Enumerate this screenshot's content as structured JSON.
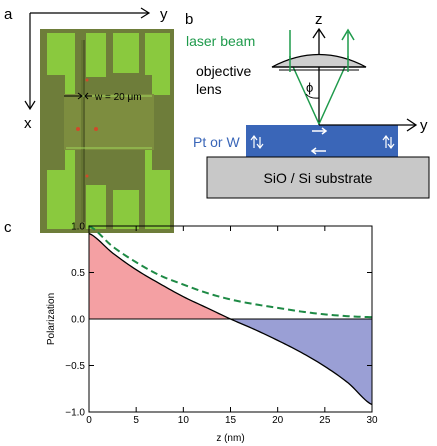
{
  "panels": {
    "a": {
      "label": "a",
      "axis_x": "x",
      "axis_y": "y",
      "width_annotation": "w = 20 μm"
    },
    "b": {
      "label": "b",
      "axis_z": "z",
      "axis_y": "y",
      "laser_label": "laser beam",
      "objective_line1": "objective",
      "objective_line2": "lens",
      "angle_label": "ϕ",
      "film_label": "Pt or W",
      "substrate_label": "SiO / Si substrate",
      "colors": {
        "laser": "#1e9a4b",
        "film": "#3a66b8",
        "film_text": "#3a66b8",
        "substrate": "#c8c8c8"
      }
    },
    "c": {
      "label": "c"
    }
  },
  "chart_data": {
    "type": "line",
    "xlabel": "z (nm)",
    "ylabel": "Polarization",
    "xlim": [
      0,
      30
    ],
    "ylim": [
      -1.0,
      1.0
    ],
    "xticks": [
      0,
      5,
      10,
      15,
      20,
      25,
      30
    ],
    "xtick_labels": [
      "0",
      "5",
      "10",
      "15",
      "20",
      "25",
      "30"
    ],
    "yticks": [
      -1.0,
      -0.5,
      0.0,
      0.5,
      1.0
    ],
    "ytick_labels": [
      "−1.0",
      "−0.5",
      "0.0",
      "0.5",
      "1.0"
    ],
    "grid": false,
    "series": [
      {
        "style": "solid",
        "color": "#000000",
        "x": [
          0,
          2.5,
          5,
          7.5,
          10,
          12.5,
          15,
          17.5,
          20,
          22.5,
          25,
          27.5,
          30
        ],
        "values": [
          0.92,
          0.71,
          0.53,
          0.38,
          0.24,
          0.12,
          0.0,
          -0.11,
          -0.23,
          -0.36,
          -0.51,
          -0.69,
          -0.92
        ]
      },
      {
        "style": "dashed",
        "color": "#1e8a45",
        "x": [
          0,
          2.5,
          5,
          7.5,
          10,
          12.5,
          15,
          17.5,
          20,
          22.5,
          25,
          27.5,
          30
        ],
        "values": [
          1.0,
          0.78,
          0.61,
          0.47,
          0.37,
          0.28,
          0.21,
          0.16,
          0.12,
          0.08,
          0.05,
          0.03,
          0.02
        ]
      }
    ],
    "fills": [
      {
        "between": [
          0,
          15
        ],
        "color": "#f4a0a3"
      },
      {
        "between": [
          15,
          30
        ],
        "color": "#9a9fd5"
      }
    ]
  }
}
